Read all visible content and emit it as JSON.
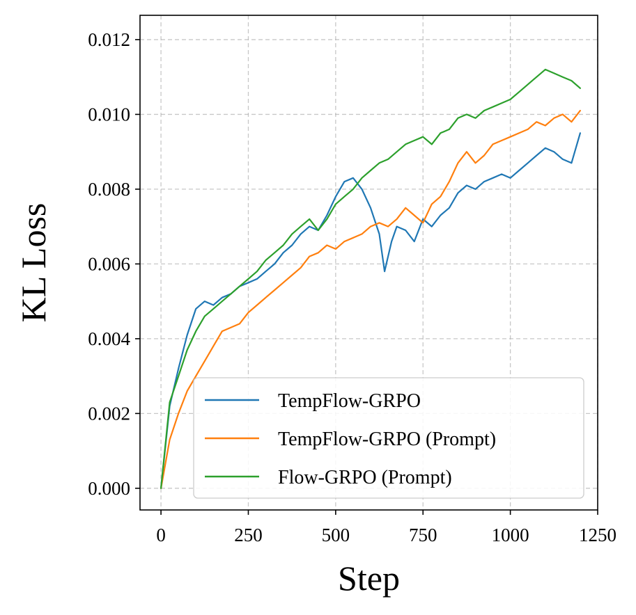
{
  "chart_data": {
    "type": "line",
    "xlabel": "Step",
    "ylabel": "KL Loss",
    "xlim": [
      -60,
      1250
    ],
    "ylim": [
      -0.00058,
      0.01265
    ],
    "xticks": [
      0,
      250,
      500,
      750,
      1000,
      1250
    ],
    "xtick_labels": [
      "0",
      "250",
      "500",
      "750",
      "1000",
      "1250"
    ],
    "yticks": [
      0.0,
      0.002,
      0.004,
      0.006,
      0.008,
      0.01,
      0.012
    ],
    "ytick_labels": [
      "0.000",
      "0.002",
      "0.004",
      "0.006",
      "0.008",
      "0.010",
      "0.012"
    ],
    "grid": true,
    "legend_position": "lower-right",
    "series": [
      {
        "name": "TempFlow-GRPO",
        "color": "#1f77b4",
        "x": [
          0,
          25,
          50,
          75,
          100,
          125,
          150,
          175,
          200,
          225,
          250,
          275,
          300,
          325,
          350,
          375,
          400,
          425,
          450,
          475,
          500,
          525,
          550,
          575,
          600,
          625,
          640,
          660,
          675,
          700,
          725,
          750,
          775,
          800,
          825,
          850,
          875,
          900,
          925,
          950,
          975,
          1000,
          1025,
          1050,
          1075,
          1100,
          1125,
          1150,
          1175,
          1200
        ],
        "y": [
          0.0,
          0.0022,
          0.0032,
          0.0041,
          0.0048,
          0.005,
          0.0049,
          0.0051,
          0.0052,
          0.0054,
          0.0055,
          0.0056,
          0.0058,
          0.006,
          0.0063,
          0.0065,
          0.0068,
          0.007,
          0.0069,
          0.0073,
          0.0078,
          0.0082,
          0.0083,
          0.008,
          0.0075,
          0.0068,
          0.0058,
          0.0066,
          0.007,
          0.0069,
          0.0066,
          0.0072,
          0.007,
          0.0073,
          0.0075,
          0.0079,
          0.0081,
          0.008,
          0.0082,
          0.0083,
          0.0084,
          0.0083,
          0.0085,
          0.0087,
          0.0089,
          0.0091,
          0.009,
          0.0088,
          0.0087,
          0.0095
        ]
      },
      {
        "name": "TempFlow-GRPO (Prompt)",
        "color": "#ff7f0e",
        "x": [
          0,
          25,
          50,
          75,
          100,
          125,
          150,
          175,
          200,
          225,
          250,
          275,
          300,
          325,
          350,
          375,
          400,
          425,
          450,
          475,
          500,
          525,
          550,
          575,
          600,
          625,
          650,
          675,
          700,
          725,
          750,
          775,
          800,
          825,
          850,
          875,
          900,
          925,
          950,
          975,
          1000,
          1025,
          1050,
          1075,
          1100,
          1125,
          1150,
          1175,
          1200
        ],
        "y": [
          0.0,
          0.0013,
          0.002,
          0.0026,
          0.003,
          0.0034,
          0.0038,
          0.0042,
          0.0043,
          0.0044,
          0.0047,
          0.0049,
          0.0051,
          0.0053,
          0.0055,
          0.0057,
          0.0059,
          0.0062,
          0.0063,
          0.0065,
          0.0064,
          0.0066,
          0.0067,
          0.0068,
          0.007,
          0.0071,
          0.007,
          0.0072,
          0.0075,
          0.0073,
          0.0071,
          0.0076,
          0.0078,
          0.0082,
          0.0087,
          0.009,
          0.0087,
          0.0089,
          0.0092,
          0.0093,
          0.0094,
          0.0095,
          0.0096,
          0.0098,
          0.0097,
          0.0099,
          0.01,
          0.0098,
          0.0101
        ]
      },
      {
        "name": "Flow-GRPO (Prompt)",
        "color": "#2ca02c",
        "x": [
          0,
          25,
          50,
          75,
          100,
          125,
          150,
          175,
          200,
          225,
          250,
          275,
          300,
          325,
          350,
          375,
          400,
          425,
          450,
          475,
          500,
          525,
          550,
          575,
          600,
          625,
          650,
          675,
          700,
          725,
          750,
          775,
          800,
          825,
          850,
          875,
          900,
          925,
          950,
          975,
          1000,
          1025,
          1050,
          1075,
          1100,
          1125,
          1150,
          1175,
          1200
        ],
        "y": [
          0.0,
          0.0023,
          0.003,
          0.0037,
          0.0042,
          0.0046,
          0.0048,
          0.005,
          0.0052,
          0.0054,
          0.0056,
          0.0058,
          0.0061,
          0.0063,
          0.0065,
          0.0068,
          0.007,
          0.0072,
          0.0069,
          0.0072,
          0.0076,
          0.0078,
          0.008,
          0.0083,
          0.0085,
          0.0087,
          0.0088,
          0.009,
          0.0092,
          0.0093,
          0.0094,
          0.0092,
          0.0095,
          0.0096,
          0.0099,
          0.01,
          0.0099,
          0.0101,
          0.0102,
          0.0103,
          0.0104,
          0.0106,
          0.0108,
          0.011,
          0.0112,
          0.0111,
          0.011,
          0.0109,
          0.0107
        ]
      }
    ]
  }
}
